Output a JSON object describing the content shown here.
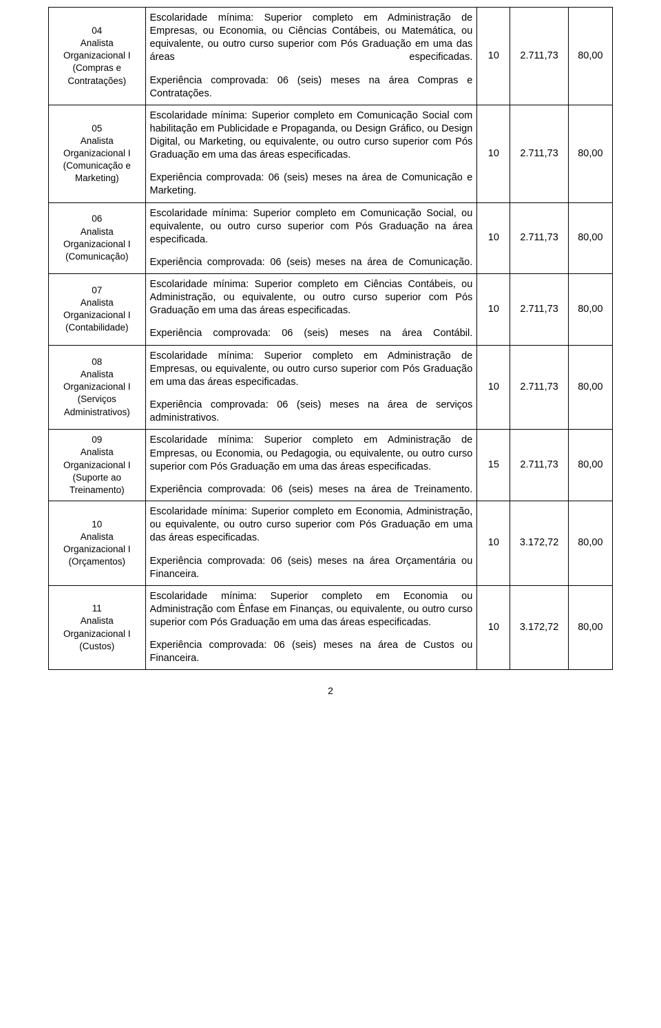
{
  "page_number": "2",
  "rows": [
    {
      "code_lines": [
        "04",
        "Analista",
        "Organizacional I",
        "(Compras e",
        "Contratações)"
      ],
      "desc1": "Escolaridade mínima: Superior completo em Administração de Empresas, ou Economia, ou Ciências Contábeis, ou Matemática, ou equivalente, ou outro curso superior com Pós Graduação em uma das áreas especificadas.",
      "desc2": "Experiência comprovada: 06 (seis) meses na área Compras e Contratações.",
      "v1": "10",
      "v2": "2.711,73",
      "v3": "80,00",
      "spread1": true,
      "spread2": true
    },
    {
      "code_lines": [
        "05",
        "Analista",
        "Organizacional I",
        "(Comunicação e",
        "Marketing)"
      ],
      "desc1": "Escolaridade mínima: Superior completo em Comunicação Social com habilitação em Publicidade e Propaganda, ou Design Gráfico, ou Design Digital, ou Marketing, ou equivalente, ou outro curso superior com Pós Graduação em uma das áreas especificadas.",
      "desc2": "Experiência comprovada: 06 (seis) meses na área de Comunicação e Marketing.",
      "v1": "10",
      "v2": "2.711,73",
      "v3": "80,00",
      "spread2": true
    },
    {
      "code_lines": [
        "06",
        "Analista",
        "Organizacional I",
        "(Comunicação)"
      ],
      "desc1": "Escolaridade mínima: Superior completo em Comunicação Social, ou equivalente, ou outro curso superior com Pós Graduação na área especificada.",
      "desc2": "Experiência comprovada: 06 (seis) meses na área de Comunicação.",
      "v1": "10",
      "v2": "2.711,73",
      "v3": "80,00",
      "spread2": true
    },
    {
      "code_lines": [
        "07",
        "Analista",
        "Organizacional I",
        "(Contabilidade)"
      ],
      "desc1": "Escolaridade mínima: Superior completo em Ciências Contábeis, ou Administração, ou equivalente, ou outro curso superior com Pós Graduação em uma das áreas especificadas.",
      "desc2": "Experiência comprovada: 06 (seis) meses na área Contábil.",
      "v1": "10",
      "v2": "2.711,73",
      "v3": "80,00",
      "spread2": true
    },
    {
      "code_lines": [
        "08",
        "Analista",
        "Organizacional I",
        "(Serviços",
        "Administrativos)"
      ],
      "desc1": "Escolaridade mínima: Superior completo em Administração de Empresas, ou equivalente, ou outro curso superior com Pós Graduação em uma das áreas especificadas.",
      "desc2": "Experiência comprovada: 06 (seis) meses na área de serviços administrativos.",
      "v1": "10",
      "v2": "2.711,73",
      "v3": "80,00",
      "spread2": true
    },
    {
      "code_lines": [
        "09",
        "Analista",
        "Organizacional I",
        "(Suporte ao",
        "Treinamento)"
      ],
      "desc1": "Escolaridade mínima: Superior completo em Administração de Empresas, ou Economia, ou Pedagogia, ou equivalente, ou outro curso superior com Pós Graduação em uma das áreas especificadas.",
      "desc2": "Experiência comprovada: 06 (seis) meses na área de Treinamento.",
      "v1": "15",
      "v2": "2.711,73",
      "v3": "80,00",
      "spread2": true
    },
    {
      "code_lines": [
        "10",
        "Analista",
        "Organizacional I",
        "(Orçamentos)"
      ],
      "desc1": "Escolaridade mínima: Superior completo em Economia, Administração, ou equivalente, ou outro curso superior com Pós Graduação em uma das áreas especificadas.",
      "desc2": "Experiência comprovada: 06 (seis) meses na área Orçamentária ou Financeira.",
      "v1": "10",
      "v2": "3.172,72",
      "v3": "80,00",
      "spread2": true
    },
    {
      "code_lines": [
        "11",
        "Analista",
        "Organizacional I",
        "(Custos)"
      ],
      "desc1": "Escolaridade mínima: Superior completo em Economia ou Administração com Ênfase em Finanças, ou equivalente, ou outro curso superior com Pós Graduação em uma das áreas especificadas.",
      "desc2": "Experiência comprovada: 06 (seis) meses na área de Custos ou Financeira.",
      "v1": "10",
      "v2": "3.172,72",
      "v3": "80,00",
      "spread2": true
    }
  ]
}
